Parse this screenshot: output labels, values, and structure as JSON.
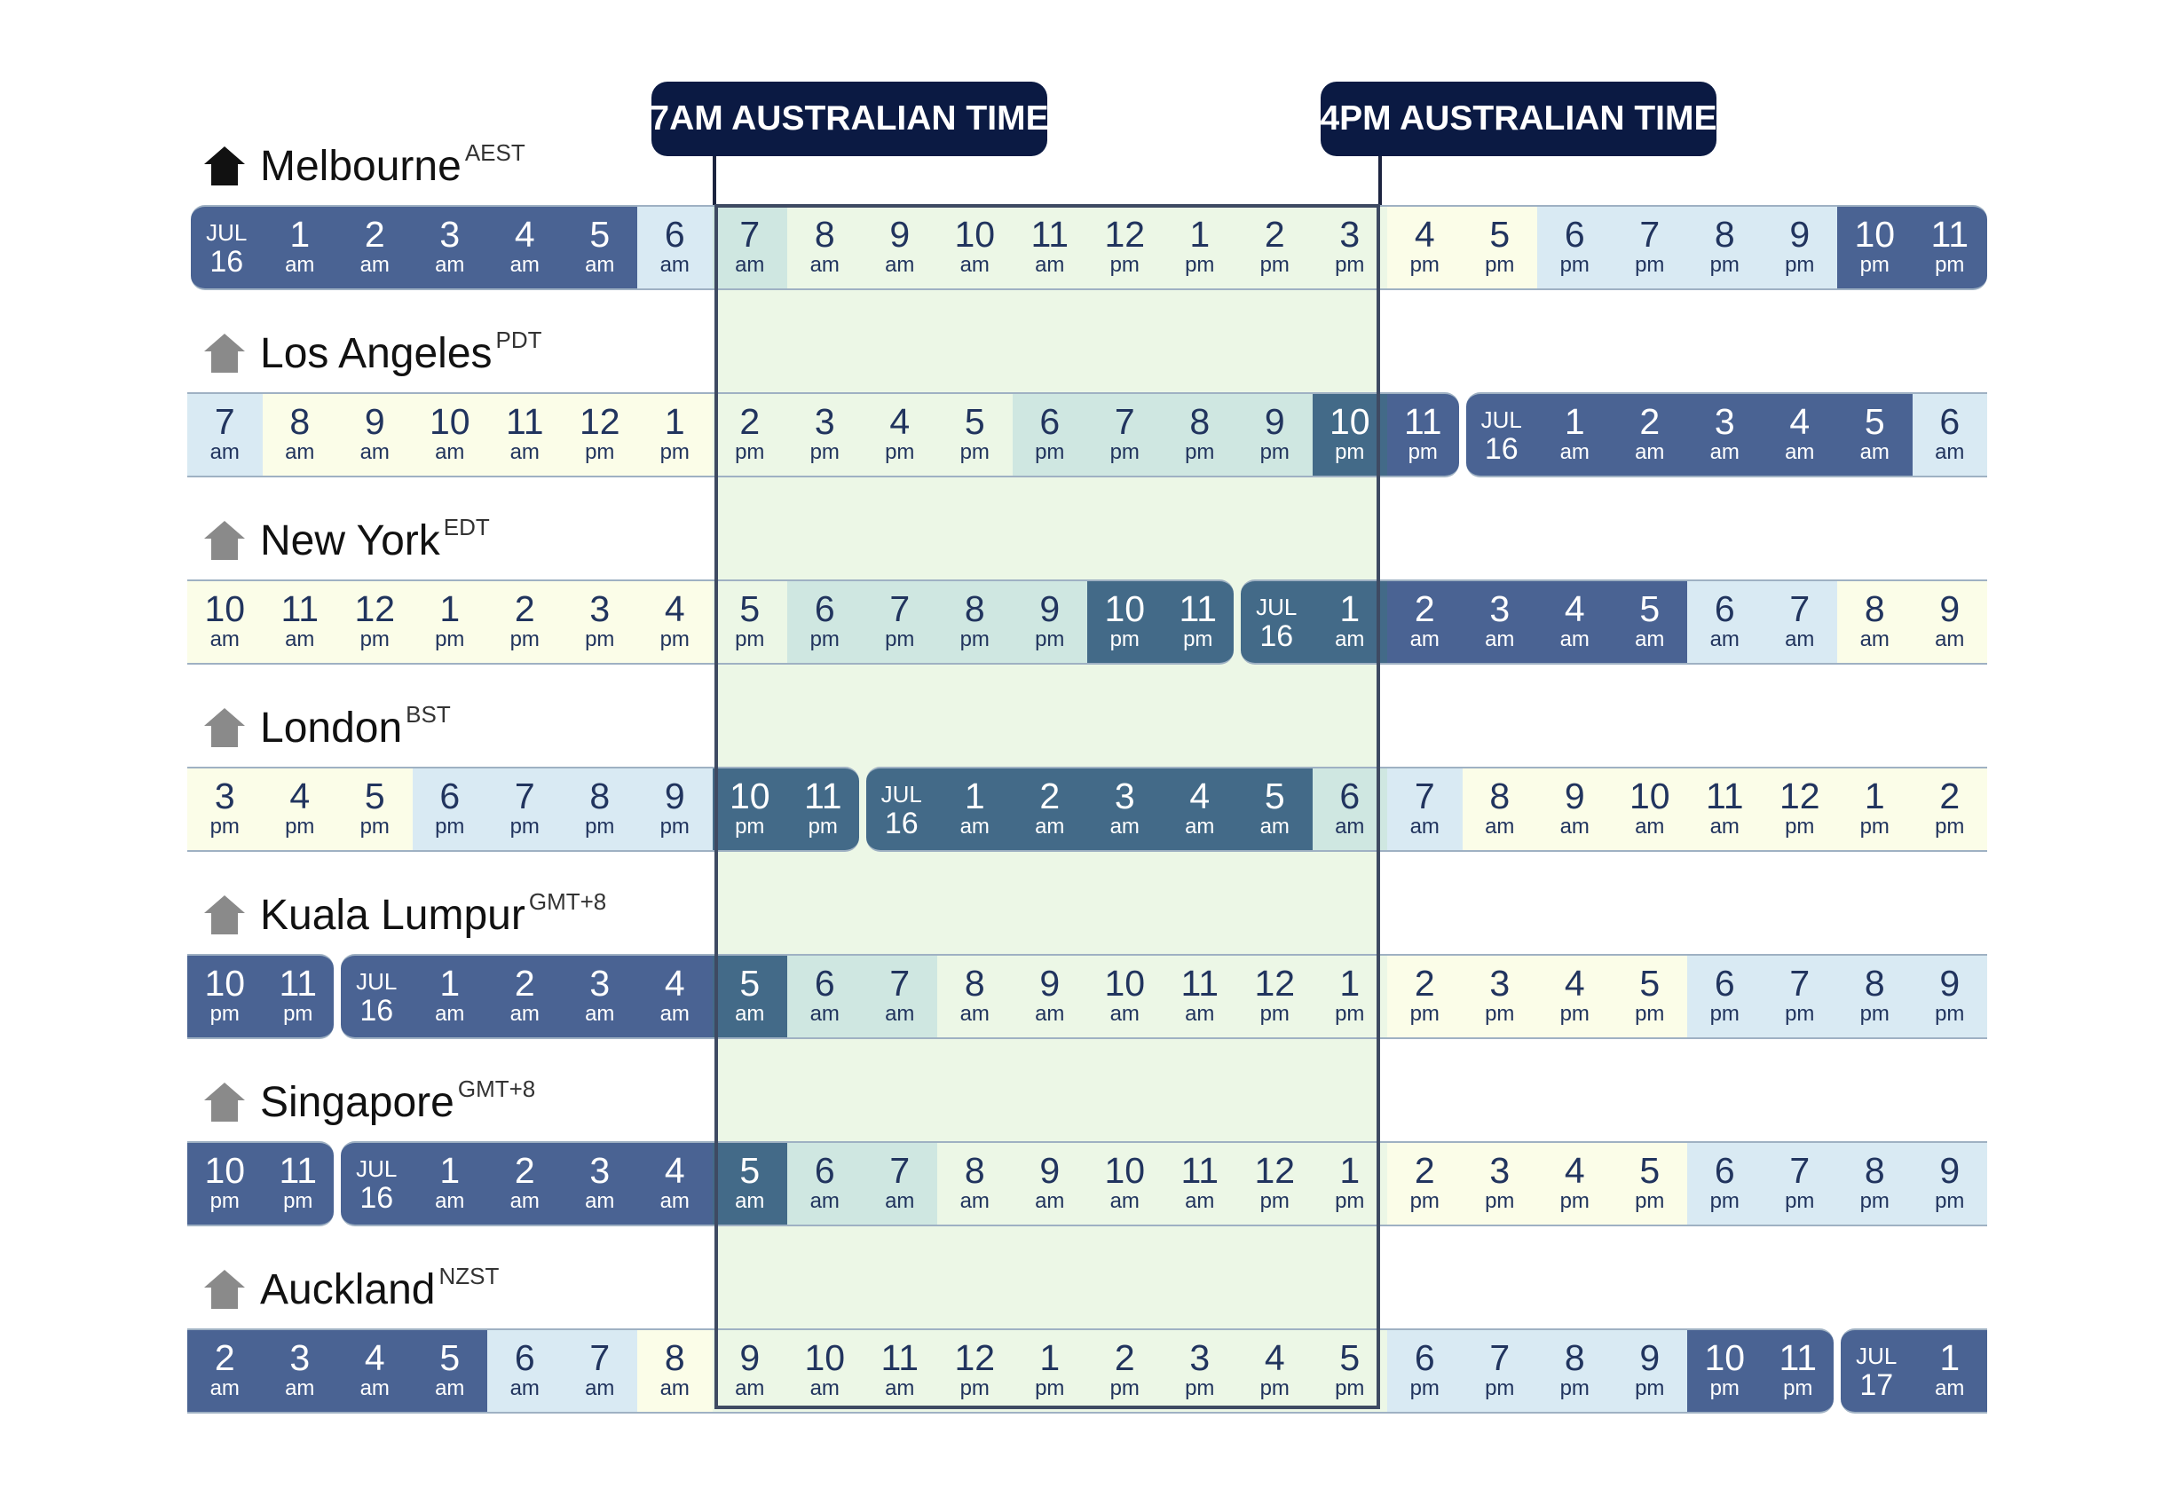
{
  "callouts": {
    "left": "7AM AUSTRALIAN TIME",
    "right": "4PM AUSTRALIAN TIME"
  },
  "colors": {
    "night": "#4a6393",
    "work": "#436a88",
    "dawn": "#d9eaf3",
    "day": "#fbfde8",
    "evening": "#cfe7e1",
    "highlight": "#ecf7e6",
    "window_border": "#3e4a62",
    "callout_bg": "#0b1a43"
  },
  "cities": [
    {
      "name": "Melbourne",
      "zone": "AEST",
      "home": true,
      "cells": [
        {
          "mon": "JUL",
          "d": "16"
        },
        {
          "n": "1",
          "m": "am"
        },
        {
          "n": "2",
          "m": "am"
        },
        {
          "n": "3",
          "m": "am"
        },
        {
          "n": "4",
          "m": "am"
        },
        {
          "n": "5",
          "m": "am"
        },
        {
          "n": "6",
          "m": "am"
        },
        {
          "n": "7",
          "m": "am"
        },
        {
          "n": "8",
          "m": "am"
        },
        {
          "n": "9",
          "m": "am"
        },
        {
          "n": "10",
          "m": "am"
        },
        {
          "n": "11",
          "m": "am"
        },
        {
          "n": "12",
          "m": "pm"
        },
        {
          "n": "1",
          "m": "pm"
        },
        {
          "n": "2",
          "m": "pm"
        },
        {
          "n": "3",
          "m": "pm"
        },
        {
          "n": "4",
          "m": "pm"
        },
        {
          "n": "5",
          "m": "pm"
        },
        {
          "n": "6",
          "m": "pm"
        },
        {
          "n": "7",
          "m": "pm"
        },
        {
          "n": "8",
          "m": "pm"
        },
        {
          "n": "9",
          "m": "pm"
        },
        {
          "n": "10",
          "m": "pm"
        },
        {
          "n": "11",
          "m": "pm"
        }
      ]
    },
    {
      "name": "Los Angeles",
      "zone": "PDT",
      "home": false,
      "cells": [
        {
          "n": "7",
          "m": "am"
        },
        {
          "n": "8",
          "m": "am"
        },
        {
          "n": "9",
          "m": "am"
        },
        {
          "n": "10",
          "m": "am"
        },
        {
          "n": "11",
          "m": "am"
        },
        {
          "n": "12",
          "m": "pm"
        },
        {
          "n": "1",
          "m": "pm"
        },
        {
          "n": "2",
          "m": "pm"
        },
        {
          "n": "3",
          "m": "pm"
        },
        {
          "n": "4",
          "m": "pm"
        },
        {
          "n": "5",
          "m": "pm"
        },
        {
          "n": "6",
          "m": "pm"
        },
        {
          "n": "7",
          "m": "pm"
        },
        {
          "n": "8",
          "m": "pm"
        },
        {
          "n": "9",
          "m": "pm"
        },
        {
          "n": "10",
          "m": "pm"
        },
        {
          "n": "11",
          "m": "pm"
        },
        {
          "mon": "JUL",
          "d": "16"
        },
        {
          "n": "1",
          "m": "am"
        },
        {
          "n": "2",
          "m": "am"
        },
        {
          "n": "3",
          "m": "am"
        },
        {
          "n": "4",
          "m": "am"
        },
        {
          "n": "5",
          "m": "am"
        },
        {
          "n": "6",
          "m": "am"
        }
      ]
    },
    {
      "name": "New York",
      "zone": "EDT",
      "home": false,
      "cells": [
        {
          "n": "10",
          "m": "am"
        },
        {
          "n": "11",
          "m": "am"
        },
        {
          "n": "12",
          "m": "pm"
        },
        {
          "n": "1",
          "m": "pm"
        },
        {
          "n": "2",
          "m": "pm"
        },
        {
          "n": "3",
          "m": "pm"
        },
        {
          "n": "4",
          "m": "pm"
        },
        {
          "n": "5",
          "m": "pm"
        },
        {
          "n": "6",
          "m": "pm"
        },
        {
          "n": "7",
          "m": "pm"
        },
        {
          "n": "8",
          "m": "pm"
        },
        {
          "n": "9",
          "m": "pm"
        },
        {
          "n": "10",
          "m": "pm"
        },
        {
          "n": "11",
          "m": "pm"
        },
        {
          "mon": "JUL",
          "d": "16"
        },
        {
          "n": "1",
          "m": "am"
        },
        {
          "n": "2",
          "m": "am"
        },
        {
          "n": "3",
          "m": "am"
        },
        {
          "n": "4",
          "m": "am"
        },
        {
          "n": "5",
          "m": "am"
        },
        {
          "n": "6",
          "m": "am"
        },
        {
          "n": "7",
          "m": "am"
        },
        {
          "n": "8",
          "m": "am"
        },
        {
          "n": "9",
          "m": "am"
        }
      ]
    },
    {
      "name": "London",
      "zone": "BST",
      "home": false,
      "cells": [
        {
          "n": "3",
          "m": "pm"
        },
        {
          "n": "4",
          "m": "pm"
        },
        {
          "n": "5",
          "m": "pm"
        },
        {
          "n": "6",
          "m": "pm"
        },
        {
          "n": "7",
          "m": "pm"
        },
        {
          "n": "8",
          "m": "pm"
        },
        {
          "n": "9",
          "m": "pm"
        },
        {
          "n": "10",
          "m": "pm"
        },
        {
          "n": "11",
          "m": "pm"
        },
        {
          "mon": "JUL",
          "d": "16"
        },
        {
          "n": "1",
          "m": "am"
        },
        {
          "n": "2",
          "m": "am"
        },
        {
          "n": "3",
          "m": "am"
        },
        {
          "n": "4",
          "m": "am"
        },
        {
          "n": "5",
          "m": "am"
        },
        {
          "n": "6",
          "m": "am"
        },
        {
          "n": "7",
          "m": "am"
        },
        {
          "n": "8",
          "m": "am"
        },
        {
          "n": "9",
          "m": "am"
        },
        {
          "n": "10",
          "m": "am"
        },
        {
          "n": "11",
          "m": "am"
        },
        {
          "n": "12",
          "m": "pm"
        },
        {
          "n": "1",
          "m": "pm"
        },
        {
          "n": "2",
          "m": "pm"
        }
      ]
    },
    {
      "name": "Kuala Lumpur",
      "zone": "GMT+8",
      "home": false,
      "cells": [
        {
          "n": "10",
          "m": "pm"
        },
        {
          "n": "11",
          "m": "pm"
        },
        {
          "mon": "JUL",
          "d": "16"
        },
        {
          "n": "1",
          "m": "am"
        },
        {
          "n": "2",
          "m": "am"
        },
        {
          "n": "3",
          "m": "am"
        },
        {
          "n": "4",
          "m": "am"
        },
        {
          "n": "5",
          "m": "am"
        },
        {
          "n": "6",
          "m": "am"
        },
        {
          "n": "7",
          "m": "am"
        },
        {
          "n": "8",
          "m": "am"
        },
        {
          "n": "9",
          "m": "am"
        },
        {
          "n": "10",
          "m": "am"
        },
        {
          "n": "11",
          "m": "am"
        },
        {
          "n": "12",
          "m": "pm"
        },
        {
          "n": "1",
          "m": "pm"
        },
        {
          "n": "2",
          "m": "pm"
        },
        {
          "n": "3",
          "m": "pm"
        },
        {
          "n": "4",
          "m": "pm"
        },
        {
          "n": "5",
          "m": "pm"
        },
        {
          "n": "6",
          "m": "pm"
        },
        {
          "n": "7",
          "m": "pm"
        },
        {
          "n": "8",
          "m": "pm"
        },
        {
          "n": "9",
          "m": "pm"
        }
      ]
    },
    {
      "name": "Singapore",
      "zone": "GMT+8",
      "home": false,
      "cells": [
        {
          "n": "10",
          "m": "pm"
        },
        {
          "n": "11",
          "m": "pm"
        },
        {
          "mon": "JUL",
          "d": "16"
        },
        {
          "n": "1",
          "m": "am"
        },
        {
          "n": "2",
          "m": "am"
        },
        {
          "n": "3",
          "m": "am"
        },
        {
          "n": "4",
          "m": "am"
        },
        {
          "n": "5",
          "m": "am"
        },
        {
          "n": "6",
          "m": "am"
        },
        {
          "n": "7",
          "m": "am"
        },
        {
          "n": "8",
          "m": "am"
        },
        {
          "n": "9",
          "m": "am"
        },
        {
          "n": "10",
          "m": "am"
        },
        {
          "n": "11",
          "m": "am"
        },
        {
          "n": "12",
          "m": "pm"
        },
        {
          "n": "1",
          "m": "pm"
        },
        {
          "n": "2",
          "m": "pm"
        },
        {
          "n": "3",
          "m": "pm"
        },
        {
          "n": "4",
          "m": "pm"
        },
        {
          "n": "5",
          "m": "pm"
        },
        {
          "n": "6",
          "m": "pm"
        },
        {
          "n": "7",
          "m": "pm"
        },
        {
          "n": "8",
          "m": "pm"
        },
        {
          "n": "9",
          "m": "pm"
        }
      ]
    },
    {
      "name": "Auckland",
      "zone": "NZST",
      "home": false,
      "cells": [
        {
          "n": "2",
          "m": "am"
        },
        {
          "n": "3",
          "m": "am"
        },
        {
          "n": "4",
          "m": "am"
        },
        {
          "n": "5",
          "m": "am"
        },
        {
          "n": "6",
          "m": "am"
        },
        {
          "n": "7",
          "m": "am"
        },
        {
          "n": "8",
          "m": "am"
        },
        {
          "n": "9",
          "m": "am"
        },
        {
          "n": "10",
          "m": "am"
        },
        {
          "n": "11",
          "m": "am"
        },
        {
          "n": "12",
          "m": "pm"
        },
        {
          "n": "1",
          "m": "pm"
        },
        {
          "n": "2",
          "m": "pm"
        },
        {
          "n": "3",
          "m": "pm"
        },
        {
          "n": "4",
          "m": "pm"
        },
        {
          "n": "5",
          "m": "pm"
        },
        {
          "n": "6",
          "m": "pm"
        },
        {
          "n": "7",
          "m": "pm"
        },
        {
          "n": "8",
          "m": "pm"
        },
        {
          "n": "9",
          "m": "pm"
        },
        {
          "n": "10",
          "m": "pm"
        },
        {
          "n": "11",
          "m": "pm"
        },
        {
          "mon": "JUL",
          "d": "17"
        },
        {
          "n": "1",
          "m": "am"
        }
      ]
    }
  ]
}
